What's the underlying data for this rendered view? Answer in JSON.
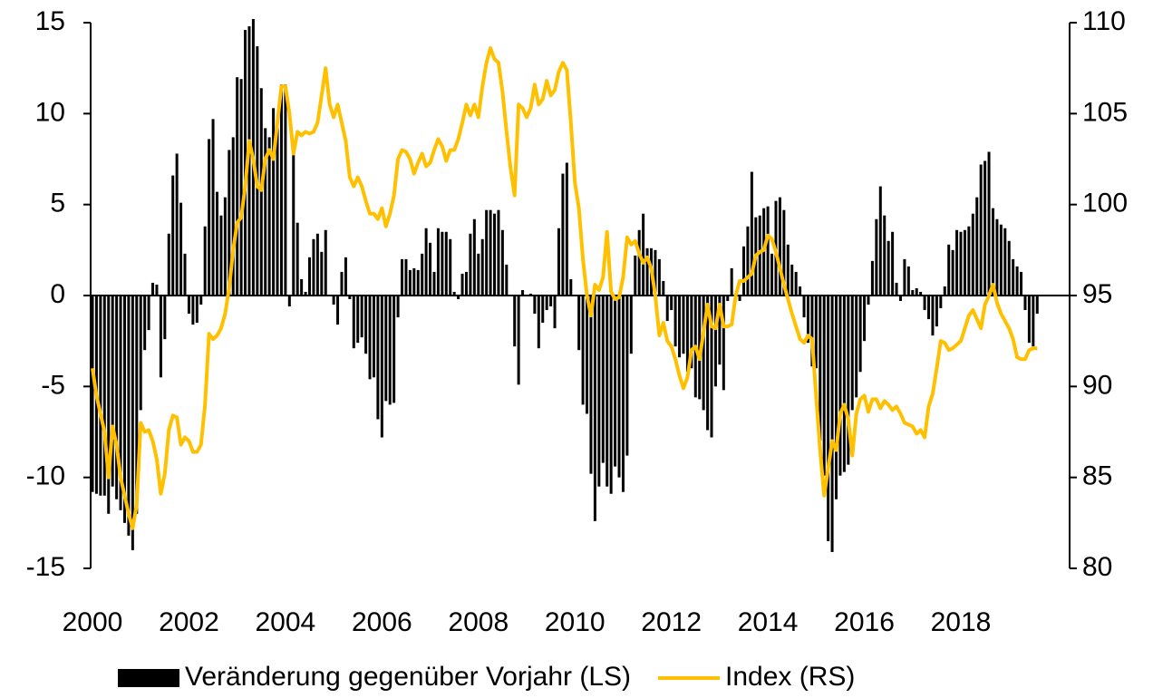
{
  "chart_data": {
    "type": "bar",
    "categories": [
      "2000",
      null,
      null,
      null,
      null,
      null,
      null,
      null,
      null,
      null,
      null,
      null,
      null,
      null,
      null,
      null,
      null,
      null,
      null,
      null,
      null,
      null,
      null,
      null,
      "2002",
      null,
      null,
      null,
      null,
      null,
      null,
      null,
      null,
      null,
      null,
      null,
      null,
      null,
      null,
      null,
      null,
      null,
      null,
      null,
      null,
      null,
      null,
      null,
      "2004",
      null,
      null,
      null,
      null,
      null,
      null,
      null,
      null,
      null,
      null,
      null,
      null,
      null,
      null,
      null,
      null,
      null,
      null,
      null,
      null,
      null,
      null,
      null,
      "2006",
      null,
      null,
      null,
      null,
      null,
      null,
      null,
      null,
      null,
      null,
      null,
      null,
      null,
      null,
      null,
      null,
      null,
      null,
      null,
      null,
      null,
      null,
      null,
      "2008",
      null,
      null,
      null,
      null,
      null,
      null,
      null,
      null,
      null,
      null,
      null,
      null,
      null,
      null,
      null,
      null,
      null,
      null,
      null,
      null,
      null,
      null,
      null,
      "2010",
      null,
      null,
      null,
      null,
      null,
      null,
      null,
      null,
      null,
      null,
      null,
      null,
      null,
      null,
      null,
      null,
      null,
      null,
      null,
      null,
      null,
      null,
      null,
      "2012",
      null,
      null,
      null,
      null,
      null,
      null,
      null,
      null,
      null,
      null,
      null,
      null,
      null,
      null,
      null,
      null,
      null,
      null,
      null,
      null,
      null,
      null,
      null,
      "2014",
      null,
      null,
      null,
      null,
      null,
      null,
      null,
      null,
      null,
      null,
      null,
      null,
      null,
      null,
      null,
      null,
      null,
      null,
      null,
      null,
      null,
      null,
      null,
      "2016",
      null,
      null,
      null,
      null,
      null,
      null,
      null,
      null,
      null,
      null,
      null,
      null,
      null,
      null,
      null,
      null,
      null,
      null,
      null,
      null,
      null,
      null,
      null,
      "2018",
      null,
      null,
      null,
      null,
      null,
      null,
      null,
      null,
      null,
      null,
      null,
      null,
      null,
      null,
      null,
      null,
      null,
      null,
      null
    ],
    "series": [
      {
        "name": "Veränderung gegenüber Vorjahr (LS)",
        "color": "#000000",
        "type": "bar",
        "values": [
          -10.8,
          -10.9,
          -11.0,
          -11.0,
          -12.0,
          -10.5,
          -11.2,
          -11.8,
          -12.5,
          -13.2,
          -14.0,
          -12.0,
          -6.3,
          -3.0,
          -1.9,
          0.7,
          0.6,
          -4.5,
          -2.4,
          3.4,
          6.6,
          7.8,
          5.1,
          2.3,
          -1.0,
          -1.6,
          -1.5,
          -0.5,
          3.8,
          8.6,
          9.7,
          5.7,
          4.4,
          5.4,
          8.0,
          8.7,
          12.0,
          11.9,
          14.6,
          14.8,
          15.2,
          13.7,
          11.4,
          9.2,
          8.7,
          10.3,
          9.7,
          11.6,
          11.6,
          -0.6,
          7.9,
          4.0,
          0.9,
          0.2,
          2.1,
          3.1,
          3.4,
          2.4,
          3.6,
          0,
          -0.5,
          -1.6,
          1.3,
          2.1,
          -0.2,
          -2.9,
          -2.6,
          -2.3,
          -3.2,
          -4.6,
          -4.5,
          -6.8,
          -7.8,
          -5.8,
          -6.0,
          -5.9,
          -1.2,
          2.0,
          2.0,
          1.4,
          1.5,
          1.4,
          2.3,
          3.7,
          2.9,
          1.3,
          3.7,
          3.5,
          3.5,
          3.1,
          0.2,
          -0.2,
          1.2,
          1.3,
          3.4,
          4.2,
          2.3,
          3.1,
          4.7,
          4.7,
          4.5,
          4.7,
          3.6,
          1.7,
          0,
          -2.8,
          -4.9,
          0.3,
          0,
          0.1,
          -1.0,
          -2.9,
          -1.5,
          -0.8,
          -0.6,
          -1.8,
          3.7,
          6.7,
          7.3,
          0.9,
          0,
          -3.0,
          -6.0,
          -6.5,
          -9.8,
          -12.4,
          -10.5,
          -9.2,
          -10.5,
          -10.9,
          -9.4,
          -10.0,
          -10.8,
          -8.8,
          -3.2,
          2.2,
          3.6,
          4.5,
          2.6,
          2.6,
          2.5,
          2.0,
          0.8,
          -1.4,
          -0.8,
          -2.8,
          -3.4,
          -3.2,
          -4.2,
          -4.0,
          -5.6,
          -5.7,
          -6.3,
          -7.4,
          -7.8,
          -5.0,
          -3.8,
          -5.2,
          -0.3,
          1.5,
          -0.2,
          -0.3,
          2.7,
          3.8,
          6.8,
          4.3,
          4.4,
          4.8,
          4.9,
          2.3,
          5.2,
          5.4,
          4.7,
          2.8,
          1.7,
          1.3,
          0.5,
          -1.2,
          -2.6,
          -3.9,
          -4.0,
          -8.0,
          -9.9,
          -13.5,
          -14.1,
          -11.2,
          -9.9,
          -9.7,
          -9.3,
          -6.3,
          -5.6,
          -4.2,
          -2.5,
          -0.5,
          1.9,
          4.2,
          6.0,
          4.4,
          3.0,
          3.5,
          0.7,
          -0.3,
          2.0,
          1.6,
          0.3,
          0.4,
          0.2,
          -0.8,
          -1.3,
          -2.2,
          -1.7,
          -0.7,
          0.5,
          2.8,
          2.5,
          3.6,
          3.5,
          3.6,
          3.8,
          4.5,
          5.4,
          7.2,
          7.4,
          7.9,
          4.8,
          4.2,
          3.9,
          3.7,
          3.0,
          2.0,
          1.6,
          1.3,
          -0.8,
          -2.6,
          -2.8,
          -1.0
        ]
      },
      {
        "name": "Index (RS)",
        "color": "#ffc000",
        "type": "line",
        "axis": "y2",
        "values": [
          91,
          89.5,
          88.5,
          87.5,
          85,
          87.8,
          86.8,
          85,
          84,
          83,
          82.2,
          83.5,
          88,
          87.5,
          87.6,
          87,
          86,
          84.1,
          85.2,
          87.6,
          88.4,
          88.3,
          86.8,
          87.2,
          87,
          86.4,
          86.4,
          86.8,
          89,
          92.9,
          92.6,
          92.8,
          93.2,
          94,
          95.4,
          97.5,
          99,
          99.3,
          101,
          103.5,
          102.5,
          101,
          100.8,
          102.5,
          103,
          102.5,
          104.5,
          106.5,
          106.5,
          105,
          102.8,
          104,
          103.8,
          104,
          103.9,
          104,
          104.5,
          106,
          107.5,
          105.5,
          104.8,
          105.5,
          104.5,
          103.5,
          101.5,
          101,
          101.5,
          101,
          100.2,
          99.5,
          99.5,
          99.2,
          99.8,
          98.8,
          99.5,
          100.5,
          102.5,
          103,
          102.9,
          102.5,
          101.7,
          102.3,
          102.8,
          102.1,
          102.3,
          103,
          103.6,
          103.2,
          102.4,
          103,
          103,
          103.6,
          104.5,
          105.5,
          104.9,
          105.5,
          104.8,
          106.5,
          107.8,
          108.6,
          108,
          107.8,
          106.2,
          104,
          102,
          100.5,
          105.5,
          105.3,
          104.8,
          105.3,
          106.6,
          105.5,
          105.8,
          106.8,
          106,
          106.3,
          107.3,
          107.8,
          107.4,
          104.5,
          101.2,
          99.8,
          97,
          95,
          93.9,
          95.6,
          95.3,
          96,
          98.5,
          95.2,
          94.8,
          94.9,
          96,
          98.2,
          97.8,
          98,
          97.3,
          96.8,
          97.1,
          96.5,
          95,
          92.8,
          93.5,
          92.5,
          92.2,
          91.5,
          90.6,
          89.9,
          90.5,
          92,
          92.2,
          91.5,
          93,
          94.5,
          93.3,
          93.2,
          94.5,
          93.3,
          93.3,
          93.4,
          95,
          95.8,
          95.8,
          96,
          96.2,
          97.2,
          97.4,
          97.5,
          98.3,
          98.1,
          97.4,
          96.5,
          95.6,
          94.8,
          94,
          93.3,
          92.6,
          92.4,
          92.8,
          92.6,
          89.5,
          86.5,
          84,
          85.5,
          87,
          86.5,
          88.5,
          89,
          88.2,
          86.2,
          88.5,
          89.3,
          89.5,
          88.6,
          89.3,
          89.3,
          88.8,
          89.2,
          89,
          88.7,
          88.9,
          88.5,
          88,
          87.9,
          87.8,
          87.4,
          87.6,
          87.2,
          88.9,
          89.6,
          91,
          92.5,
          92.4,
          92,
          92.1,
          92.3,
          92.5,
          93.2,
          93.9,
          94.2,
          93.7,
          93.2,
          94.5,
          95,
          95.6,
          94.6,
          94,
          93.6,
          93.2,
          92.6,
          91.6,
          91.5,
          91.5,
          92,
          92.1,
          92.1
        ]
      }
    ],
    "ylim": [
      -15,
      15
    ],
    "yticks": [
      -15,
      -10,
      -5,
      0,
      5,
      10,
      15
    ],
    "y2lim": [
      80,
      110
    ],
    "y2ticks": [
      80,
      85,
      90,
      95,
      100,
      105,
      110
    ],
    "legend": "bottom"
  }
}
